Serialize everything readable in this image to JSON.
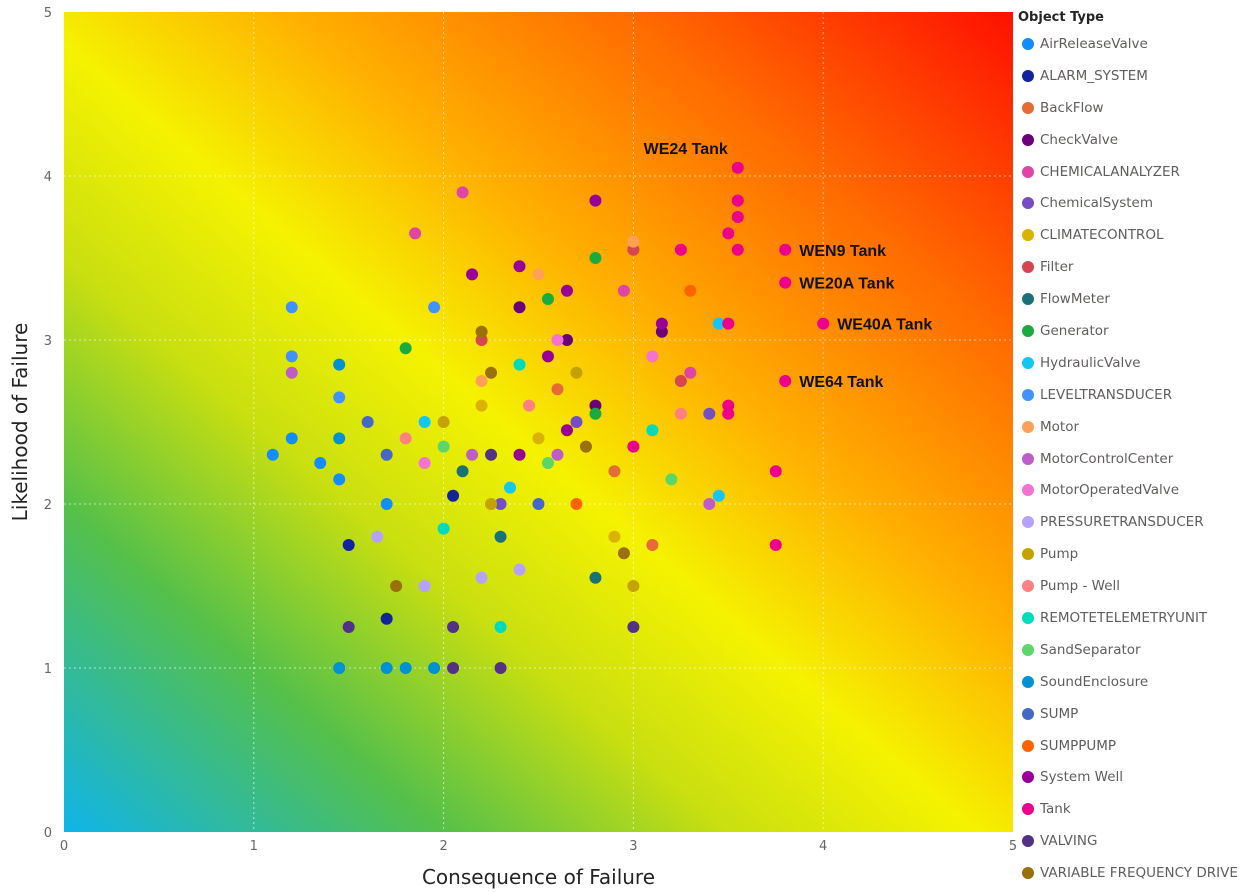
{
  "chart_data": {
    "type": "scatter",
    "xlabel": "Consequence of Failure",
    "ylabel": "Likelihood of Failure",
    "xlim": [
      0,
      5
    ],
    "ylim": [
      0,
      5
    ],
    "x_ticks": [
      "0",
      "1",
      "2",
      "3",
      "4",
      "5"
    ],
    "y_ticks": [
      "0",
      "1",
      "2",
      "3",
      "4",
      "5"
    ],
    "grid": true,
    "background": "diagonal gradient: blue (low/low) through green and yellow to red (high/high)",
    "legend_title": "Object Type",
    "legend_position": "right",
    "series": [
      {
        "name": "AirReleaseValve",
        "color": "#118DFF",
        "points": [
          [
            1.1,
            2.3
          ],
          [
            1.2,
            2.4
          ],
          [
            1.35,
            2.25
          ],
          [
            1.45,
            2.15
          ],
          [
            1.7,
            2.0
          ]
        ]
      },
      {
        "name": "ALARM_SYSTEM",
        "color": "#12239E",
        "points": [
          [
            1.7,
            1.3
          ],
          [
            1.5,
            1.75
          ],
          [
            2.05,
            2.05
          ]
        ]
      },
      {
        "name": "BackFlow",
        "color": "#E66C37",
        "points": [
          [
            2.6,
            2.7
          ],
          [
            3.1,
            1.75
          ],
          [
            2.9,
            2.2
          ]
        ]
      },
      {
        "name": "CheckValve",
        "color": "#6B007B",
        "points": [
          [
            2.4,
            3.2
          ],
          [
            2.65,
            3.0
          ],
          [
            2.8,
            2.6
          ],
          [
            3.15,
            3.05
          ]
        ]
      },
      {
        "name": "CHEMICALANALYZER",
        "color": "#E044A7",
        "points": [
          [
            2.1,
            3.9
          ],
          [
            1.85,
            3.65
          ],
          [
            2.95,
            3.3
          ],
          [
            3.3,
            2.8
          ]
        ]
      },
      {
        "name": "ChemicalSystem",
        "color": "#744EC2",
        "points": [
          [
            2.3,
            2.0
          ],
          [
            2.7,
            2.5
          ],
          [
            3.4,
            2.55
          ]
        ]
      },
      {
        "name": "CLIMATECONTROL",
        "color": "#D9B300",
        "points": [
          [
            2.5,
            2.4
          ],
          [
            2.9,
            1.8
          ],
          [
            2.2,
            2.6
          ]
        ]
      },
      {
        "name": "Filter",
        "color": "#D64550",
        "points": [
          [
            2.2,
            3.0
          ],
          [
            3.0,
            3.55
          ],
          [
            3.25,
            2.75
          ]
        ]
      },
      {
        "name": "FlowMeter",
        "color": "#197278",
        "points": [
          [
            2.1,
            2.2
          ],
          [
            2.3,
            1.8
          ],
          [
            2.8,
            1.55
          ]
        ]
      },
      {
        "name": "Generator",
        "color": "#1AAB40",
        "points": [
          [
            1.8,
            2.95
          ],
          [
            2.55,
            3.25
          ],
          [
            2.8,
            3.5
          ],
          [
            2.8,
            2.55
          ]
        ]
      },
      {
        "name": "HydraulicValve",
        "color": "#15C6F4",
        "points": [
          [
            1.9,
            2.5
          ],
          [
            2.35,
            2.1
          ],
          [
            3.45,
            2.05
          ],
          [
            3.45,
            3.1
          ]
        ]
      },
      {
        "name": "LEVELTRANSDUCER",
        "color": "#4092FF",
        "points": [
          [
            1.2,
            3.2
          ],
          [
            1.95,
            3.2
          ],
          [
            1.2,
            2.9
          ],
          [
            1.45,
            2.65
          ]
        ]
      },
      {
        "name": "Motor",
        "color": "#FFA058",
        "points": [
          [
            2.5,
            3.4
          ],
          [
            3.0,
            3.6
          ],
          [
            2.2,
            2.75
          ]
        ]
      },
      {
        "name": "MotorControlCenter",
        "color": "#BE5DC9",
        "points": [
          [
            1.2,
            2.8
          ],
          [
            2.6,
            2.3
          ],
          [
            3.4,
            2.0
          ],
          [
            2.15,
            2.3
          ]
        ]
      },
      {
        "name": "MotorOperatedValve",
        "color": "#F472D0",
        "points": [
          [
            2.6,
            3.0
          ],
          [
            3.1,
            2.9
          ],
          [
            1.9,
            2.25
          ]
        ]
      },
      {
        "name": "PRESSURETRANSDUCER",
        "color": "#B5A1FF",
        "points": [
          [
            1.65,
            1.8
          ],
          [
            2.2,
            1.55
          ],
          [
            1.9,
            1.5
          ],
          [
            2.4,
            1.6
          ]
        ]
      },
      {
        "name": "Pump",
        "color": "#C4A200",
        "points": [
          [
            2.7,
            2.8
          ],
          [
            2.0,
            2.5
          ],
          [
            2.25,
            2.0
          ],
          [
            3.0,
            1.5
          ]
        ]
      },
      {
        "name": "Pump - Well",
        "color": "#FF8080",
        "points": [
          [
            2.45,
            2.6
          ],
          [
            1.8,
            2.4
          ],
          [
            3.25,
            2.55
          ]
        ]
      },
      {
        "name": "REMOTETELEMETRYUNIT",
        "color": "#00DBBC",
        "points": [
          [
            2.3,
            1.25
          ],
          [
            3.1,
            2.45
          ],
          [
            2.0,
            1.85
          ],
          [
            2.4,
            2.85
          ]
        ]
      },
      {
        "name": "SandSeparator",
        "color": "#5BD667",
        "points": [
          [
            2.55,
            2.25
          ],
          [
            3.2,
            2.15
          ],
          [
            2.0,
            2.35
          ]
        ]
      },
      {
        "name": "SoundEnclosure",
        "color": "#0091D5",
        "points": [
          [
            1.45,
            1.0
          ],
          [
            1.7,
            1.0
          ],
          [
            1.8,
            1.0
          ],
          [
            1.95,
            1.0
          ],
          [
            1.45,
            2.4
          ],
          [
            1.45,
            2.85
          ]
        ]
      },
      {
        "name": "SUMP",
        "color": "#4668C5",
        "points": [
          [
            1.6,
            2.5
          ],
          [
            2.5,
            2.0
          ],
          [
            1.7,
            2.3
          ]
        ]
      },
      {
        "name": "SUMPPUMP",
        "color": "#FF6300",
        "points": [
          [
            3.3,
            3.3
          ],
          [
            2.7,
            2.0
          ]
        ]
      },
      {
        "name": "System Well",
        "color": "#99009A",
        "points": [
          [
            2.8,
            3.85
          ],
          [
            2.4,
            3.45
          ],
          [
            2.65,
            3.3
          ],
          [
            2.55,
            2.9
          ],
          [
            2.15,
            3.4
          ],
          [
            3.15,
            3.1
          ],
          [
            2.4,
            2.3
          ],
          [
            2.65,
            2.45
          ]
        ]
      },
      {
        "name": "Tank",
        "color": "#EC008C",
        "points": [
          [
            3.55,
            4.05
          ],
          [
            3.55,
            3.85
          ],
          [
            3.55,
            3.75
          ],
          [
            3.5,
            3.65
          ],
          [
            3.55,
            3.55
          ],
          [
            3.8,
            3.55
          ],
          [
            3.8,
            3.35
          ],
          [
            4.0,
            3.1
          ],
          [
            3.8,
            2.75
          ],
          [
            3.75,
            2.2
          ],
          [
            3.75,
            1.75
          ],
          [
            3.5,
            3.1
          ],
          [
            3.5,
            2.6
          ],
          [
            3.5,
            2.55
          ],
          [
            3.25,
            3.55
          ],
          [
            3.0,
            2.35
          ]
        ]
      },
      {
        "name": "VALVING",
        "color": "#533285",
        "points": [
          [
            2.3,
            1.0
          ],
          [
            2.05,
            1.0
          ],
          [
            1.5,
            1.25
          ],
          [
            2.05,
            1.25
          ],
          [
            3.0,
            1.25
          ],
          [
            2.25,
            2.3
          ]
        ]
      },
      {
        "name": "VARIABLE FREQUENCY DRIVE",
        "color": "#99700A",
        "points": [
          [
            2.25,
            2.8
          ],
          [
            2.75,
            2.35
          ],
          [
            1.75,
            1.5
          ],
          [
            2.95,
            1.7
          ],
          [
            2.2,
            3.05
          ]
        ]
      }
    ],
    "annotations": [
      {
        "text": "WE24 Tank",
        "x": 3.55,
        "y": 4.05
      },
      {
        "text": "WEN9 Tank",
        "x": 3.8,
        "y": 3.55
      },
      {
        "text": "WE20A Tank",
        "x": 3.8,
        "y": 3.35
      },
      {
        "text": "WE40A Tank",
        "x": 4.0,
        "y": 3.1
      },
      {
        "text": "WE64 Tank",
        "x": 3.8,
        "y": 2.75
      }
    ]
  }
}
